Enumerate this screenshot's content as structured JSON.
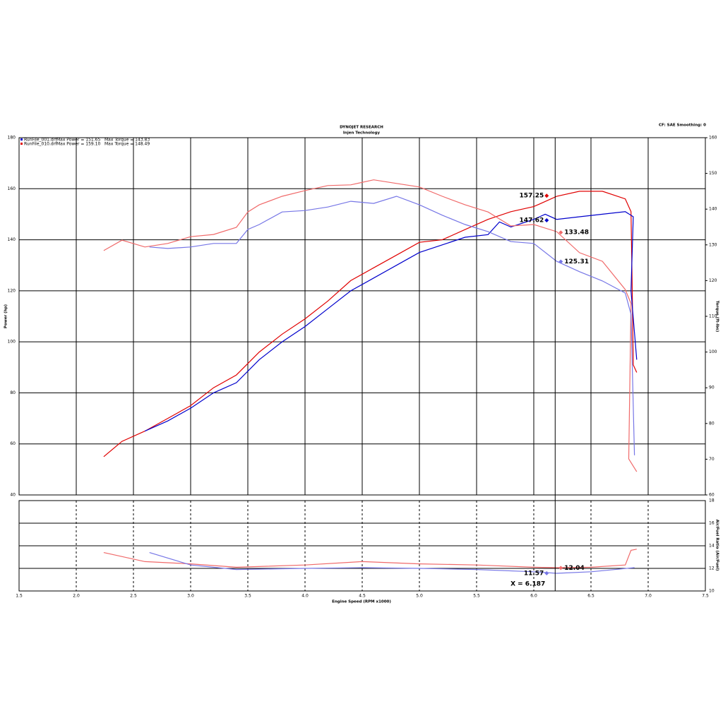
{
  "chart_data": {
    "type": "line",
    "title": "DYNOJET RESEARCH",
    "subtitle": "Injen Technology",
    "corner_note": "CF: SAE  Smoothing: 0",
    "x_label": "Engine Speed (RPM x1000)",
    "y_label": "Power (hp)",
    "y2_label": "Torque (ft-lbs)",
    "afr_label": "Air/Fuel Ratio (Air/Fuel)",
    "xlim": [
      1.5,
      7.5
    ],
    "xticks": [
      {
        "value": 1.5,
        "label": "1.5"
      },
      {
        "value": 2,
        "label": "2.0"
      },
      {
        "value": 2.5,
        "label": "2.5"
      },
      {
        "value": 3,
        "label": "3.0"
      },
      {
        "value": 3.5,
        "label": "3.5"
      },
      {
        "value": 4,
        "label": "4.0"
      },
      {
        "value": 4.5,
        "label": "4.5"
      },
      {
        "value": 5,
        "label": "5.0"
      },
      {
        "value": 5.5,
        "label": "5.5"
      },
      {
        "value": 6,
        "label": "6.0"
      },
      {
        "value": 6.5,
        "label": "6.5"
      },
      {
        "value": 7,
        "label": "7.0"
      },
      {
        "value": 7.5,
        "label": "7.5"
      }
    ],
    "ylim": [
      40,
      180
    ],
    "yticks": [
      40,
      60,
      80,
      100,
      120,
      140,
      160,
      180
    ],
    "y2lim": [
      60,
      160
    ],
    "y2ticks": [
      60,
      70,
      80,
      90,
      100,
      110,
      120,
      130,
      140,
      150,
      160
    ],
    "afr_ylim": [
      10,
      18
    ],
    "afr_yticks": [
      10,
      12,
      14,
      16,
      18
    ],
    "grid": true,
    "legend": [
      {
        "name": "RunFile_001.drf",
        "stats": "Max Power = 151.65   Max Torque = 143.83",
        "color": "#0000cc"
      },
      {
        "name": "RunFile_010.drf",
        "stats": "Max Power = 159.10   Max Torque = 148.49",
        "color": "#e00000"
      }
    ],
    "series": [
      {
        "color": "#e00000",
        "axis": "y",
        "x": [
          2.24,
          2.4,
          2.6,
          2.8,
          3.0,
          3.2,
          3.4,
          3.6,
          3.8,
          4.0,
          4.2,
          4.4,
          4.6,
          4.8,
          5.0,
          5.2,
          5.4,
          5.6,
          5.8,
          6.0,
          6.2,
          6.4,
          6.6,
          6.8,
          6.85,
          6.86,
          6.87,
          6.9
        ],
        "values": [
          55,
          61,
          65,
          70,
          75,
          82,
          87,
          96,
          103,
          109,
          116,
          124,
          129,
          134,
          139,
          140,
          144,
          148,
          151,
          153,
          157,
          159,
          159,
          156,
          151,
          123,
          91,
          88
        ]
      },
      {
        "color": "#0000cc",
        "axis": "y",
        "x": [
          2.6,
          2.8,
          3.0,
          3.2,
          3.4,
          3.6,
          3.8,
          4.0,
          4.2,
          4.4,
          4.6,
          4.8,
          5.0,
          5.2,
          5.4,
          5.6,
          5.7,
          5.8,
          6.0,
          6.1,
          6.2,
          6.4,
          6.6,
          6.8,
          6.87,
          6.85,
          6.9
        ],
        "values": [
          65,
          69,
          74,
          80,
          84,
          93,
          100,
          106,
          113,
          120,
          125,
          130,
          135,
          138,
          141,
          142,
          147,
          145,
          148,
          150,
          148,
          149,
          150,
          151,
          149,
          120,
          93
        ]
      },
      {
        "color": "#f06a6a",
        "axis": "y2",
        "x": [
          2.24,
          2.4,
          2.6,
          2.8,
          3.0,
          3.2,
          3.4,
          3.5,
          3.6,
          3.8,
          4.0,
          4.2,
          4.4,
          4.6,
          4.8,
          5.0,
          5.2,
          5.4,
          5.6,
          5.8,
          6.0,
          6.2,
          6.4,
          6.6,
          6.8,
          6.85,
          6.83,
          6.9
        ],
        "values": [
          128.4,
          131.3,
          129.4,
          130.4,
          132.3,
          132.9,
          134.9,
          139.2,
          141.2,
          143.6,
          145.2,
          146.6,
          146.8,
          148.2,
          147.2,
          146.2,
          143.6,
          141.2,
          139.2,
          135.3,
          135.7,
          133.7,
          127.8,
          125.4,
          117.5,
          113.6,
          70.1,
          66.5
        ]
      },
      {
        "color": "#7676e6",
        "axis": "y2",
        "x": [
          2.64,
          2.8,
          3.0,
          3.2,
          3.4,
          3.5,
          3.6,
          3.8,
          4.0,
          4.2,
          4.4,
          4.6,
          4.8,
          5.0,
          5.2,
          5.4,
          5.6,
          5.8,
          6.0,
          6.2,
          6.4,
          6.6,
          6.8,
          6.85,
          6.88
        ],
        "values": [
          129.4,
          129,
          129.4,
          130.4,
          130.4,
          134.3,
          135.7,
          139.2,
          139.6,
          140.6,
          142.2,
          141.6,
          143.6,
          141.2,
          138.3,
          135.7,
          133.7,
          130.9,
          130.4,
          125.4,
          122.5,
          119.9,
          116.5,
          110.6,
          71.1
        ]
      },
      {
        "color": "#f06a6a",
        "axis": "afr",
        "x": [
          2.24,
          2.6,
          3.0,
          3.4,
          4.0,
          4.5,
          5.0,
          5.5,
          6.0,
          6.2,
          6.5,
          6.8,
          6.85,
          6.9
        ],
        "values": [
          13.4,
          12.6,
          12.4,
          12.1,
          12.3,
          12.6,
          12.4,
          12.3,
          12.1,
          12.06,
          12.1,
          12.3,
          13.6,
          13.7
        ]
      },
      {
        "color": "#7676e6",
        "axis": "afr",
        "x": [
          2.64,
          3.0,
          3.4,
          4.0,
          4.5,
          5.0,
          5.5,
          6.0,
          6.2,
          6.5,
          6.88
        ],
        "values": [
          13.4,
          12.3,
          11.9,
          12.0,
          12.06,
          12.0,
          11.9,
          11.7,
          11.56,
          11.7,
          12.06
        ]
      }
    ],
    "cursor": {
      "x": 6.187,
      "label": "X = 6.187"
    },
    "readouts": [
      {
        "value": 157.25,
        "axis": "y",
        "color": "#e00000"
      },
      {
        "value": 147.62,
        "axis": "y",
        "color": "#0000cc"
      },
      {
        "value": 133.48,
        "axis": "y2",
        "color": "#f06a6a"
      },
      {
        "value": 125.31,
        "axis": "y2",
        "color": "#7676e6"
      },
      {
        "value": 12.04,
        "axis": "afr",
        "color": "#f06a6a"
      },
      {
        "value": 11.57,
        "axis": "afr",
        "color": "#7676e6"
      }
    ]
  }
}
